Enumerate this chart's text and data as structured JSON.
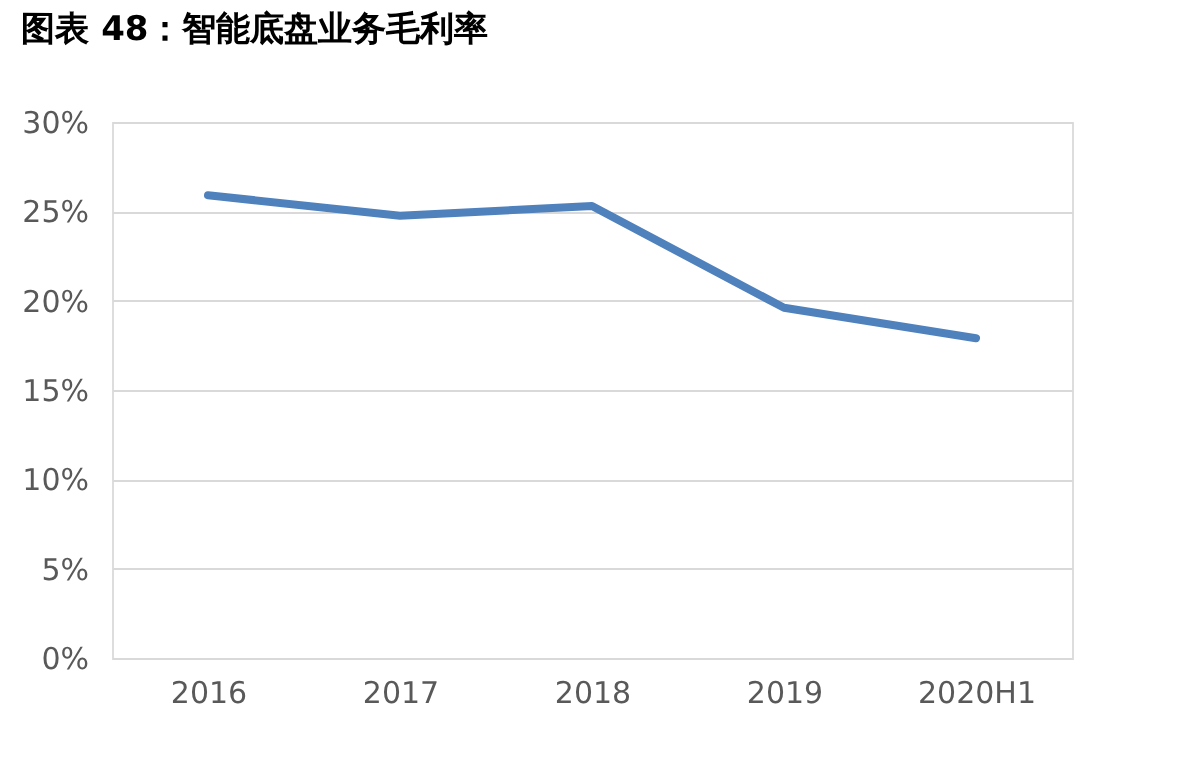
{
  "chart_data": {
    "type": "line",
    "title": "图表 48：智能底盘业务毛利率",
    "categories": [
      "2016",
      "2017",
      "2018",
      "2019",
      "2020H1"
    ],
    "series": [
      {
        "color": "#4f81bd",
        "values": [
          25.9,
          24.75,
          25.3,
          19.6,
          17.9
        ]
      }
    ],
    "ylim": [
      0,
      30
    ],
    "yticks": [
      {
        "value": 0,
        "label": "0%"
      },
      {
        "value": 5,
        "label": "5%"
      },
      {
        "value": 10,
        "label": "10%"
      },
      {
        "value": 15,
        "label": "15%"
      },
      {
        "value": 20,
        "label": "20%"
      },
      {
        "value": 25,
        "label": "25%"
      },
      {
        "value": 30,
        "label": "30%"
      }
    ],
    "grid": "y",
    "legend": false,
    "marker": "none",
    "line_style": "solid"
  }
}
